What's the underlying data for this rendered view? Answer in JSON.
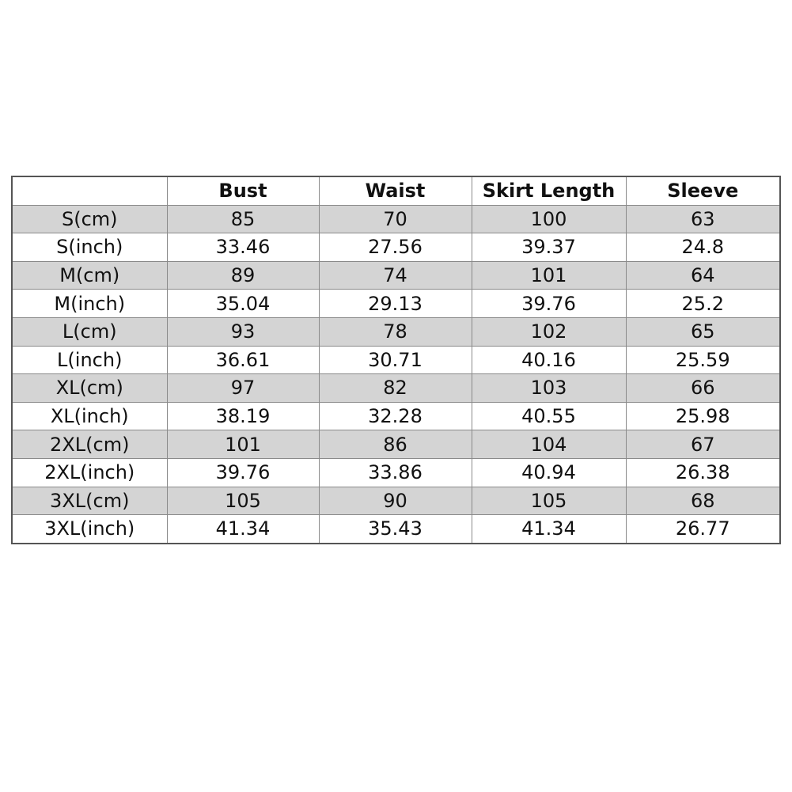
{
  "table": {
    "headers": [
      "",
      "Bust",
      "Waist",
      "Skirt Length",
      "Sleeve"
    ],
    "rows": [
      [
        "S(cm)",
        "85",
        "70",
        "100",
        "63"
      ],
      [
        "S(inch)",
        "33.46",
        "27.56",
        "39.37",
        "24.8"
      ],
      [
        "M(cm)",
        "89",
        "74",
        "101",
        "64"
      ],
      [
        "M(inch)",
        "35.04",
        "29.13",
        "39.76",
        "25.2"
      ],
      [
        "L(cm)",
        "93",
        "78",
        "102",
        "65"
      ],
      [
        "L(inch)",
        "36.61",
        "30.71",
        "40.16",
        "25.59"
      ],
      [
        "XL(cm)",
        "97",
        "82",
        "103",
        "66"
      ],
      [
        "XL(inch)",
        "38.19",
        "32.28",
        "40.55",
        "25.98"
      ],
      [
        "2XL(cm)",
        "101",
        "86",
        "104",
        "67"
      ],
      [
        "2XL(inch)",
        "39.76",
        "33.86",
        "40.94",
        "26.38"
      ],
      [
        "3XL(cm)",
        "105",
        "90",
        "105",
        "68"
      ],
      [
        "3XL(inch)",
        "41.34",
        "35.43",
        "41.34",
        "26.77"
      ]
    ],
    "colors": {
      "shaded_row": "#d4d4d4",
      "border": "#8a8a8a"
    }
  }
}
